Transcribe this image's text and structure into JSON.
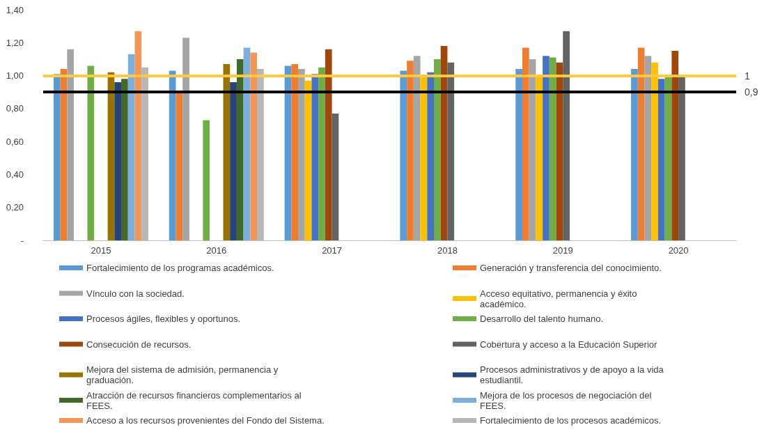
{
  "chart_data": {
    "type": "bar",
    "categories": [
      "2015",
      "2016",
      "2017",
      "2018",
      "2019",
      "2020"
    ],
    "series": [
      {
        "name": "Fortalecimiento de los programas académicos.",
        "color": "#5b9bd5",
        "values": [
          1.01,
          1.03,
          1.06,
          1.03,
          1.04,
          1.04
        ]
      },
      {
        "name": "Generación y transferencia del conocimiento.",
        "color": "#ed7d31",
        "values": [
          1.04,
          0.9,
          1.07,
          1.09,
          1.17,
          1.17
        ]
      },
      {
        "name": "Vínculo con la sociedad.",
        "color": "#a5a5a5",
        "values": [
          1.16,
          1.23,
          1.04,
          1.12,
          1.1,
          1.12
        ]
      },
      {
        "name": "Acceso equitativo, permanencia y éxito académico.",
        "color": "#ffc000",
        "values": [
          null,
          null,
          0.97,
          1.0,
          1.0,
          1.08
        ]
      },
      {
        "name": "Procesos ágiles, flexibles y oportunos.",
        "color": "#4472c4",
        "values": [
          null,
          null,
          1.01,
          1.02,
          1.12,
          0.98
        ]
      },
      {
        "name": "Desarrollo del talento humano.",
        "color": "#70ad47",
        "values": [
          1.06,
          0.73,
          1.05,
          1.1,
          1.11,
          0.99
        ]
      },
      {
        "name": "Consecución de recursos.",
        "color": "#9e480e",
        "values": [
          null,
          null,
          1.16,
          1.18,
          1.08,
          1.15
        ]
      },
      {
        "name": "Cobertura y acceso a la Educación Superior",
        "color": "#636363",
        "values": [
          null,
          null,
          0.77,
          1.08,
          1.27,
          1.0
        ]
      },
      {
        "name": "Mejora del sistema de admisión, permanencia y graduación.",
        "color": "#997300",
        "values": [
          1.02,
          1.07,
          null,
          null,
          null,
          null
        ]
      },
      {
        "name": "Procesos administrativos y de apoyo a la vida estudiantil.",
        "color": "#264478",
        "values": [
          0.96,
          0.96,
          null,
          null,
          null,
          null
        ]
      },
      {
        "name": "Atracción de recursos financieros complementarios al FEES.",
        "color": "#43682b",
        "values": [
          0.98,
          1.1,
          null,
          null,
          null,
          null
        ]
      },
      {
        "name": "Mejora de los procesos de negociación del FEES.",
        "color": "#7cafdd",
        "values": [
          1.13,
          1.17,
          null,
          null,
          null,
          null
        ]
      },
      {
        "name": "Acceso a los recursos provenientes del Fondo del Sistema.",
        "color": "#f1975a",
        "values": [
          1.27,
          1.14,
          null,
          null,
          null,
          null
        ]
      },
      {
        "name": "Fortalecimiento de los procesos académicos.",
        "color": "#b7b7b7",
        "values": [
          1.05,
          1.04,
          null,
          null,
          null,
          null
        ]
      }
    ],
    "ref_lines": [
      {
        "axis": "y",
        "value": 1,
        "label": "1",
        "color": "#ffc83d"
      },
      {
        "axis": "y",
        "value": 0.9,
        "label": "0,9",
        "color": "#000000"
      }
    ],
    "ylim": [
      0,
      1.4
    ],
    "yticks": [
      {
        "value": 0,
        "label": "-"
      },
      {
        "value": 0.2,
        "label": "0,20"
      },
      {
        "value": 0.4,
        "label": "0,40"
      },
      {
        "value": 0.6,
        "label": "0,60"
      },
      {
        "value": 0.8,
        "label": "0,80"
      },
      {
        "value": 1.0,
        "label": "1,00"
      },
      {
        "value": 1.2,
        "label": "1,20"
      },
      {
        "value": 1.4,
        "label": "1,40"
      }
    ],
    "grid": false,
    "legend": "bottom"
  }
}
